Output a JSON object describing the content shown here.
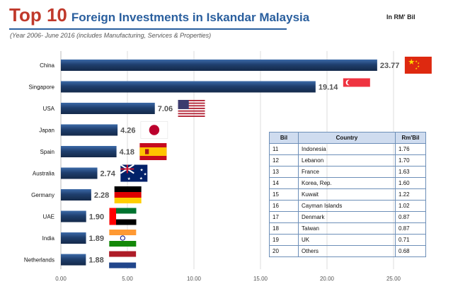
{
  "header": {
    "title_main": "Top 10",
    "title_sub": "Foreign Investments in Iskandar Malaysia",
    "subtitle": "(Year 2006- June 2016 (includes Manufacturing, Services & Properties)",
    "unit": "In RM' Bil"
  },
  "chart_data": {
    "type": "bar",
    "orientation": "horizontal",
    "categories": [
      "China",
      "Singapore",
      "USA",
      "Japan",
      "Spain",
      "Australia",
      "Germany",
      "UAE",
      "India",
      "Netherlands"
    ],
    "values": [
      23.77,
      19.14,
      7.06,
      4.26,
      4.18,
      2.74,
      2.28,
      1.9,
      1.89,
      1.88
    ],
    "value_labels": [
      "23.77",
      "19.14",
      "7.06",
      "4.26",
      "4.18",
      "2.74",
      "2.28",
      "1.90",
      "1.89",
      "1.88"
    ],
    "xticks": [
      "0.00",
      "5.00",
      "10.00",
      "15.00",
      "20.00",
      "25.00"
    ],
    "xlim": [
      0,
      25
    ],
    "title": "",
    "xlabel": "",
    "ylabel": "",
    "grid": "vertical",
    "bar_color": "#1f3f6e",
    "flags": [
      "china-flag",
      "singapore-flag",
      "usa-flag",
      "japan-flag",
      "spain-flag",
      "australia-flag",
      "germany-flag",
      "uae-flag",
      "india-flag",
      "netherlands-flag"
    ]
  },
  "table": {
    "headers": [
      "Bil",
      "Country",
      "Rm'Bil"
    ],
    "rows": [
      [
        "11",
        "Indonesia",
        "1.76"
      ],
      [
        "12",
        "Lebanon",
        "1.70"
      ],
      [
        "13",
        "France",
        "1.63"
      ],
      [
        "14",
        "Korea, Rep.",
        "1.60"
      ],
      [
        "15",
        "Kuwait",
        "1.22"
      ],
      [
        "16",
        "Cayman Islands",
        "1.02"
      ],
      [
        "17",
        "Denmark",
        "0.87"
      ],
      [
        "18",
        "Taiwan",
        "0.87"
      ],
      [
        "19",
        "UK",
        "0.71"
      ],
      [
        "20",
        "Others",
        "0.68"
      ]
    ]
  }
}
